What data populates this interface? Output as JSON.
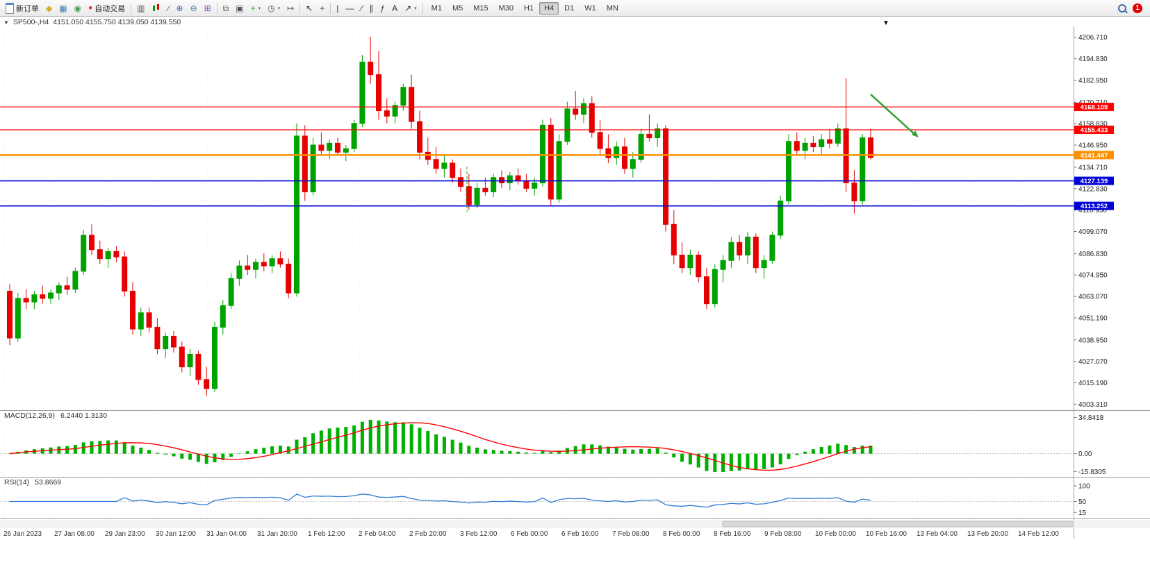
{
  "toolbar": {
    "new_order_label": "新订单",
    "auto_trading_label": "自动交易",
    "icons": [
      {
        "name": "market-watch-icon",
        "glyph": "◆",
        "color": "#d9a62e"
      },
      {
        "name": "data-window-icon",
        "glyph": "▦",
        "color": "#4a7ebb"
      },
      {
        "name": "navigator-icon",
        "glyph": "◉",
        "color": "#3f9b4f"
      },
      {
        "name": "bar-chart-icon",
        "glyph": "▥",
        "color": "#555555"
      },
      {
        "name": "line-chart-icon",
        "glyph": "∕",
        "color": "#555555"
      },
      {
        "name": "zoom-in-icon",
        "glyph": "⊕",
        "color": "#3a6ea5"
      },
      {
        "name": "zoom-out-icon",
        "glyph": "⊖",
        "color": "#3a6ea5"
      },
      {
        "name": "tile-windows-icon",
        "glyph": "⊞",
        "color": "#7a5db0"
      },
      {
        "name": "cascade-icon",
        "glyph": "⧉",
        "color": "#555555"
      },
      {
        "name": "arrange-icon",
        "glyph": "▣",
        "color": "#555555"
      },
      {
        "name": "add-indicator-icon",
        "glyph": "+",
        "color": "#1f9d1f"
      },
      {
        "name": "period-icon",
        "glyph": "◷",
        "color": "#555555"
      },
      {
        "name": "chart-shift-icon",
        "glyph": "↦",
        "color": "#555555"
      },
      {
        "name": "cursor-icon",
        "glyph": "↖",
        "color": "#333333"
      },
      {
        "name": "crosshair-icon",
        "glyph": "+",
        "color": "#333333"
      },
      {
        "name": "vertical-line-icon",
        "glyph": "|",
        "color": "#333333"
      },
      {
        "name": "horizontal-line-icon",
        "glyph": "—",
        "color": "#333333"
      },
      {
        "name": "trendline-icon",
        "glyph": "∕",
        "color": "#333333"
      },
      {
        "name": "channel-icon",
        "glyph": "∥",
        "color": "#333333"
      },
      {
        "name": "fibonacci-icon",
        "glyph": "ƒ",
        "color": "#333333"
      },
      {
        "name": "text-icon",
        "glyph": "A",
        "color": "#333333"
      },
      {
        "name": "arrows-icon",
        "glyph": "↗",
        "color": "#333333"
      }
    ],
    "timeframes": [
      "M1",
      "M5",
      "M15",
      "M30",
      "H1",
      "H4",
      "D1",
      "W1",
      "MN"
    ],
    "active_timeframe": "H4",
    "notification_count": "1"
  },
  "chart": {
    "title": "SP500-,H4",
    "ohlc_text": "4151.050 4155.750 4139.050 4139.550"
  },
  "chart_data": {
    "type": "candlestick",
    "symbol": "SP500-",
    "timeframe": "H4",
    "current_bar": {
      "open": 4151.05,
      "high": 4155.75,
      "low": 4139.05,
      "close": 4139.55
    },
    "ylim": [
      4000,
      4212
    ],
    "colors": {
      "up": "#00a200",
      "down": "#e60000",
      "macd_hist": "#00b000",
      "macd_signal": "#ff0000",
      "rsi": "#2d7bd4"
    },
    "y_axis_labels": [
      "4206.710",
      "4194.830",
      "4182.950",
      "4170.710",
      "4158.830",
      "4146.950",
      "4134.710",
      "4122.830",
      "4110.950",
      "4099.070",
      "4086.830",
      "4074.950",
      "4063.070",
      "4051.190",
      "4038.950",
      "4027.070",
      "4015.190",
      "4003.310"
    ],
    "h_lines": [
      {
        "price": 4168.109,
        "label": "4168.109",
        "color": "#ff0000",
        "width": 1.2
      },
      {
        "price": 4155.433,
        "label": "4155.433",
        "color": "#ff0000",
        "width": 1.2
      },
      {
        "price": 4141.447,
        "label": "4141.447",
        "color": "#ff9000",
        "width": 2.4
      },
      {
        "price": 4127.139,
        "label": "4127.139",
        "color": "#0000d8",
        "width": 1.6
      },
      {
        "price": 4113.252,
        "label": "4113.252",
        "color": "#0000d8",
        "width": 1.6
      }
    ],
    "arrow_annotation": {
      "color": "#2e9e2e"
    },
    "time_labels": [
      "26 Jan 2023",
      "27 Jan 08:00",
      "29 Jan 23:00",
      "30 Jan 12:00",
      "31 Jan 04:00",
      "31 Jan 20:00",
      "1 Feb 12:00",
      "2 Feb 04:00",
      "2 Feb 20:00",
      "3 Feb 12:00",
      "6 Feb 00:00",
      "6 Feb 16:00",
      "7 Feb 08:00",
      "8 Feb 00:00",
      "8 Feb 16:00",
      "9 Feb 08:00",
      "10 Feb 00:00",
      "10 Feb 16:00",
      "13 Feb 04:00",
      "13 Feb 20:00",
      "14 Feb 12:00"
    ],
    "candles": [
      [
        4066,
        4070,
        4036,
        4040
      ],
      [
        4040,
        4065,
        4038,
        4062
      ],
      [
        4062,
        4067,
        4056,
        4060
      ],
      [
        4060,
        4066,
        4056,
        4064
      ],
      [
        4064,
        4069,
        4059,
        4062
      ],
      [
        4062,
        4067,
        4059,
        4065
      ],
      [
        4065,
        4071,
        4061,
        4069
      ],
      [
        4069,
        4074,
        4064,
        4067
      ],
      [
        4067,
        4079,
        4065,
        4077
      ],
      [
        4077,
        4100,
        4075,
        4097
      ],
      [
        4097,
        4103,
        4086,
        4089
      ],
      [
        4089,
        4094,
        4081,
        4084
      ],
      [
        4084,
        4090,
        4079,
        4088
      ],
      [
        4088,
        4091,
        4082,
        4085
      ],
      [
        4085,
        4088,
        4063,
        4066
      ],
      [
        4066,
        4071,
        4042,
        4045
      ],
      [
        4045,
        4057,
        4041,
        4054
      ],
      [
        4054,
        4057,
        4043,
        4046
      ],
      [
        4046,
        4051,
        4031,
        4034
      ],
      [
        4034,
        4043,
        4029,
        4041
      ],
      [
        4041,
        4044,
        4032,
        4035
      ],
      [
        4035,
        4038,
        4021,
        4024
      ],
      [
        4024,
        4034,
        4019,
        4031
      ],
      [
        4031,
        4033,
        4014,
        4017
      ],
      [
        4017,
        4024,
        4008,
        4012
      ],
      [
        4012,
        4049,
        4010,
        4046
      ],
      [
        4046,
        4061,
        4042,
        4058
      ],
      [
        4058,
        4076,
        4056,
        4073
      ],
      [
        4073,
        4083,
        4069,
        4080
      ],
      [
        4080,
        4086,
        4075,
        4078
      ],
      [
        4078,
        4084,
        4073,
        4082
      ],
      [
        4082,
        4087,
        4077,
        4080
      ],
      [
        4080,
        4086,
        4076,
        4084
      ],
      [
        4084,
        4088,
        4079,
        4081
      ],
      [
        4081,
        4084,
        4062,
        4065
      ],
      [
        4065,
        4159,
        4063,
        4152
      ],
      [
        4152,
        4158,
        4116,
        4121
      ],
      [
        4121,
        4151,
        4119,
        4147
      ],
      [
        4147,
        4154,
        4141,
        4144
      ],
      [
        4144,
        4150,
        4139,
        4148
      ],
      [
        4148,
        4151,
        4141,
        4143
      ],
      [
        4143,
        4147,
        4138,
        4145
      ],
      [
        4145,
        4161,
        4143,
        4159
      ],
      [
        4159,
        4197,
        4157,
        4193
      ],
      [
        4193,
        4207,
        4181,
        4186
      ],
      [
        4186,
        4199,
        4161,
        4166
      ],
      [
        4166,
        4173,
        4159,
        4163
      ],
      [
        4163,
        4171,
        4159,
        4169
      ],
      [
        4169,
        4181,
        4166,
        4179
      ],
      [
        4179,
        4186,
        4156,
        4160
      ],
      [
        4160,
        4166,
        4139,
        4143
      ],
      [
        4143,
        4151,
        4136,
        4139
      ],
      [
        4139,
        4146,
        4131,
        4134
      ],
      [
        4134,
        4141,
        4129,
        4137
      ],
      [
        4137,
        4139,
        4126,
        4129
      ],
      [
        4129,
        4134,
        4121,
        4124
      ],
      [
        4124,
        4131,
        4111,
        4114
      ],
      [
        4114,
        4126,
        4112,
        4123
      ],
      [
        4123,
        4129,
        4119,
        4121
      ],
      [
        4121,
        4131,
        4118,
        4129
      ],
      [
        4129,
        4133,
        4123,
        4126
      ],
      [
        4126,
        4132,
        4122,
        4130
      ],
      [
        4130,
        4134,
        4125,
        4127
      ],
      [
        4127,
        4131,
        4121,
        4123
      ],
      [
        4123,
        4129,
        4119,
        4126
      ],
      [
        4126,
        4161,
        4124,
        4158
      ],
      [
        4158,
        4162,
        4113,
        4117
      ],
      [
        4117,
        4153,
        4115,
        4149
      ],
      [
        4149,
        4171,
        4147,
        4167
      ],
      [
        4167,
        4177,
        4161,
        4164
      ],
      [
        4164,
        4173,
        4159,
        4170
      ],
      [
        4170,
        4174,
        4151,
        4154
      ],
      [
        4154,
        4161,
        4141,
        4145
      ],
      [
        4145,
        4153,
        4137,
        4140
      ],
      [
        4140,
        4149,
        4136,
        4146
      ],
      [
        4146,
        4151,
        4131,
        4134
      ],
      [
        4134,
        4143,
        4129,
        4139
      ],
      [
        4139,
        4156,
        4137,
        4153
      ],
      [
        4153,
        4164,
        4149,
        4151
      ],
      [
        4151,
        4159,
        4146,
        4156
      ],
      [
        4156,
        4158,
        4099,
        4103
      ],
      [
        4103,
        4111,
        4081,
        4086
      ],
      [
        4086,
        4093,
        4076,
        4079
      ],
      [
        4079,
        4089,
        4075,
        4086
      ],
      [
        4086,
        4088,
        4071,
        4074
      ],
      [
        4074,
        4079,
        4056,
        4059
      ],
      [
        4059,
        4081,
        4057,
        4078
      ],
      [
        4078,
        4086,
        4071,
        4083
      ],
      [
        4083,
        4096,
        4079,
        4093
      ],
      [
        4093,
        4097,
        4083,
        4086
      ],
      [
        4086,
        4099,
        4081,
        4096
      ],
      [
        4096,
        4098,
        4076,
        4079
      ],
      [
        4079,
        4086,
        4073,
        4083
      ],
      [
        4083,
        4099,
        4081,
        4097
      ],
      [
        4097,
        4119,
        4095,
        4116
      ],
      [
        4116,
        4153,
        4114,
        4149
      ],
      [
        4149,
        4154,
        4141,
        4144
      ],
      [
        4144,
        4151,
        4139,
        4148
      ],
      [
        4148,
        4152,
        4143,
        4146
      ],
      [
        4146,
        4153,
        4142,
        4150
      ],
      [
        4150,
        4156,
        4145,
        4148
      ],
      [
        4148,
        4159,
        4146,
        4156
      ],
      [
        4156,
        4184,
        4121,
        4126
      ],
      [
        4126,
        4133,
        4109,
        4116
      ],
      [
        4116,
        4153,
        4114,
        4151
      ],
      [
        4151,
        4156,
        4139,
        4140
      ]
    ],
    "macd": {
      "label": "MACD(12,26,9)",
      "values_text": "6.2440 1.3130",
      "axis_labels": [
        "34.8418",
        "0.00",
        "-15.8305"
      ]
    },
    "rsi": {
      "label": "RSI(14)",
      "value_text": "53.8669",
      "axis_labels": [
        "100",
        "50",
        "15"
      ]
    }
  }
}
